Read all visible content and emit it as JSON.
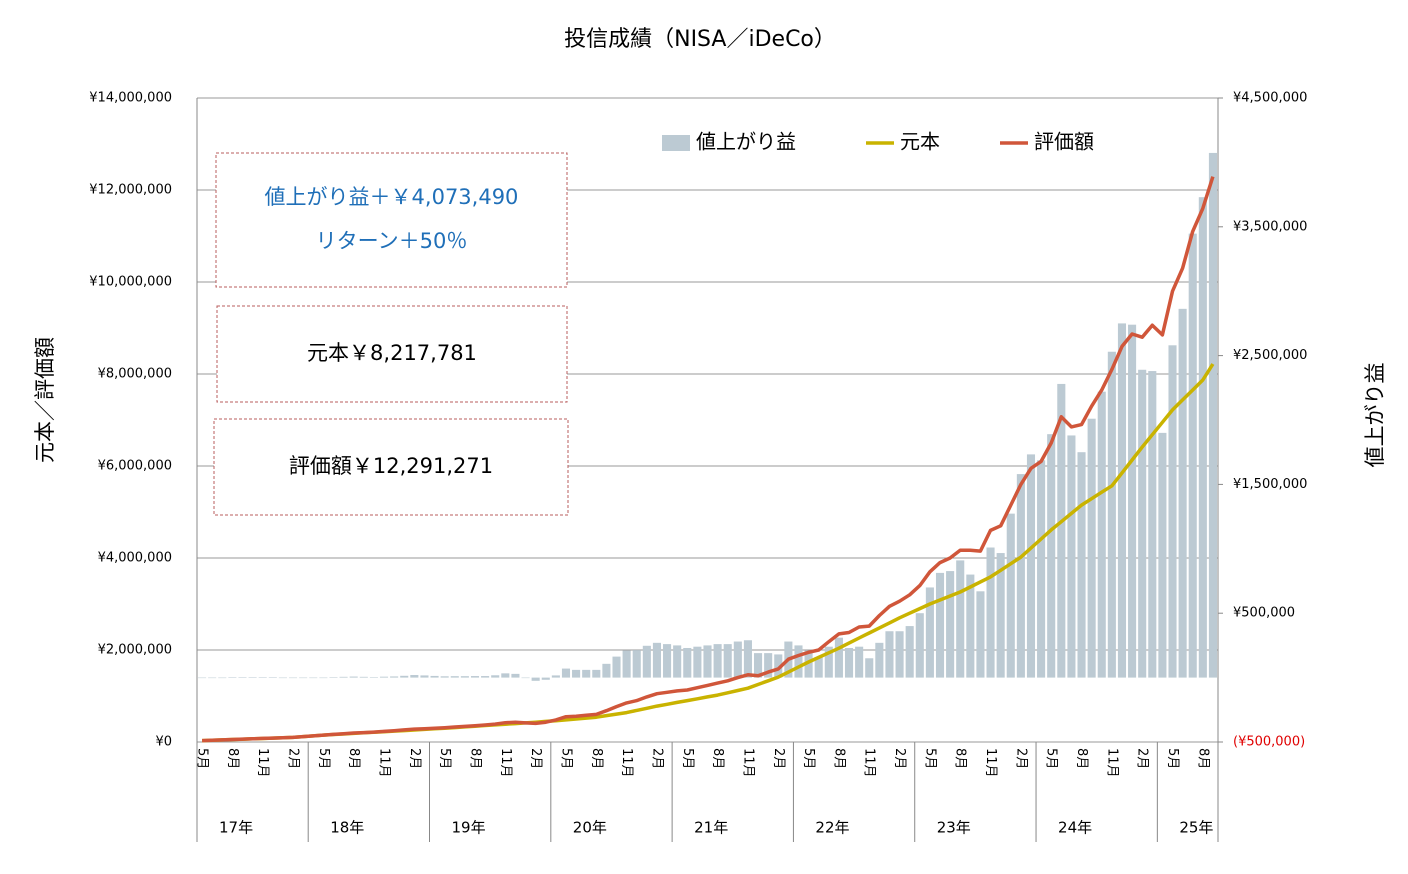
{
  "chart_data": {
    "type": "combo",
    "title": "投信成績（NISA／iDeCo）",
    "ylabel": "元本／評価額",
    "y2label": "値上がり益",
    "categories": [
      "5月",
      null,
      null,
      "8月",
      null,
      null,
      "11月",
      null,
      null,
      "2月",
      null,
      null,
      "5月",
      null,
      null,
      "8月",
      null,
      null,
      "11月",
      null,
      null,
      "2月",
      null,
      null,
      "5月",
      null,
      null,
      "8月",
      null,
      null,
      "11月",
      null,
      null,
      "2月",
      null,
      null,
      "5月",
      null,
      null,
      "8月",
      null,
      null,
      "11月",
      null,
      null,
      "2月",
      null,
      null,
      "5月",
      null,
      null,
      "8月",
      null,
      null,
      "11月",
      null,
      null,
      "2月",
      null,
      null,
      "5月",
      null,
      null,
      "8月",
      null,
      null,
      "11月",
      null,
      null,
      "2月",
      null,
      null,
      "5月",
      null,
      null,
      "8月",
      null,
      null,
      "11月",
      null,
      null,
      "2月",
      null,
      null,
      "5月",
      null,
      null,
      "8月",
      null,
      null,
      "11月",
      null,
      null,
      "2月",
      null,
      null,
      "5月",
      null,
      null,
      "8月",
      null
    ],
    "x_groups": [
      "17年",
      "18年",
      "19年",
      "20年",
      "21年",
      "22年",
      "23年",
      "24年",
      "25年"
    ],
    "series": [
      {
        "name": "値上がり益",
        "type": "bar",
        "axis": "y2",
        "color": "#bccad3",
        "values": [
          0,
          0,
          0,
          1000,
          1000,
          1000,
          1000,
          1000,
          0,
          0,
          0,
          0,
          0,
          3000,
          6000,
          8000,
          6000,
          4000,
          7000,
          9000,
          14000,
          20000,
          17000,
          13000,
          10000,
          11000,
          11000,
          12000,
          12000,
          18000,
          33000,
          29000,
          -1000,
          -25000,
          -17000,
          17000,
          70000,
          60000,
          60000,
          60000,
          107000,
          163000,
          210000,
          213000,
          247000,
          270000,
          260000,
          250000,
          230000,
          240000,
          250000,
          260000,
          260000,
          280000,
          290000,
          190000,
          190000,
          180000,
          280000,
          250000,
          210000,
          160000,
          240000,
          310000,
          230000,
          240000,
          150000,
          270000,
          360000,
          360000,
          400000,
          500000,
          700000,
          813000,
          827000,
          910000,
          800000,
          670000,
          1010000,
          967000,
          1273000,
          1580000,
          1733000,
          1687000,
          1890000,
          2280000,
          1880000,
          1750000,
          2010000,
          2220000,
          2530000,
          2750000,
          2740000,
          2390000,
          2380000,
          1900000,
          2580000,
          2863000,
          3447000,
          3730000,
          4073490
        ]
      },
      {
        "name": "元本",
        "type": "line",
        "axis": "y",
        "color": "#c9b300",
        "values": [
          30000,
          38000,
          46000,
          54000,
          61000,
          69000,
          77000,
          84000,
          92000,
          100000,
          117000,
          133000,
          150000,
          162000,
          174000,
          187000,
          199000,
          211000,
          223000,
          236000,
          248000,
          260000,
          273000,
          287000,
          300000,
          314000,
          329000,
          343000,
          358000,
          372000,
          387000,
          401000,
          416000,
          430000,
          447000,
          463000,
          480000,
          500000,
          520000,
          540000,
          573000,
          607000,
          640000,
          687000,
          733000,
          780000,
          820000,
          860000,
          900000,
          940000,
          980000,
          1020000,
          1070000,
          1120000,
          1170000,
          1250000,
          1330000,
          1410000,
          1520000,
          1630000,
          1740000,
          1840000,
          1940000,
          2040000,
          2150000,
          2260000,
          2370000,
          2480000,
          2590000,
          2700000,
          2800000,
          2900000,
          3000000,
          3087000,
          3173000,
          3260000,
          3370000,
          3480000,
          3590000,
          3733000,
          3877000,
          4020000,
          4217000,
          4413000,
          4610000,
          4790000,
          4970000,
          5150000,
          5290000,
          5430000,
          5570000,
          5850000,
          6130000,
          6410000,
          6680000,
          6950000,
          7220000,
          7437000,
          7653000,
          7870000,
          8217781
        ]
      },
      {
        "name": "評価額",
        "type": "line",
        "axis": "y",
        "color": "#d0563a",
        "values": [
          30000,
          38000,
          46000,
          55000,
          62000,
          70000,
          78000,
          85000,
          92000,
          100000,
          117000,
          133000,
          150000,
          165000,
          180000,
          195000,
          205000,
          215000,
          230000,
          245000,
          262000,
          280000,
          290000,
          300000,
          310000,
          325000,
          340000,
          355000,
          370000,
          390000,
          420000,
          430000,
          415000,
          405000,
          430000,
          480000,
          550000,
          560000,
          580000,
          600000,
          680000,
          770000,
          850000,
          900000,
          980000,
          1050000,
          1080000,
          1110000,
          1130000,
          1180000,
          1230000,
          1280000,
          1330000,
          1400000,
          1460000,
          1440000,
          1520000,
          1590000,
          1800000,
          1880000,
          1950000,
          2000000,
          2180000,
          2350000,
          2380000,
          2500000,
          2520000,
          2750000,
          2950000,
          3060000,
          3200000,
          3400000,
          3700000,
          3900000,
          4000000,
          4170000,
          4170000,
          4150000,
          4600000,
          4700000,
          5150000,
          5600000,
          5950000,
          6100000,
          6500000,
          7070000,
          6850000,
          6900000,
          7300000,
          7650000,
          8100000,
          8600000,
          8870000,
          8800000,
          9060000,
          8850000,
          9800000,
          10300000,
          11100000,
          11600000,
          12291271
        ]
      }
    ],
    "ylim": [
      0,
      14000000
    ],
    "yticks": [
      {
        "value": 0,
        "label": "¥0"
      },
      {
        "value": 2000000,
        "label": "¥2,000,000"
      },
      {
        "value": 4000000,
        "label": "¥4,000,000"
      },
      {
        "value": 6000000,
        "label": "¥6,000,000"
      },
      {
        "value": 8000000,
        "label": "¥8,000,000"
      },
      {
        "value": 10000000,
        "label": "¥10,000,000"
      },
      {
        "value": 12000000,
        "label": "¥12,000,000"
      },
      {
        "value": 14000000,
        "label": "¥14,000,000"
      }
    ],
    "y2lim": [
      -500000,
      4500000
    ],
    "y2ticks": [
      {
        "value": -500000,
        "label": "(¥500,000)"
      },
      {
        "value": 500000,
        "label": "¥500,000"
      },
      {
        "value": 1500000,
        "label": "¥1,500,000"
      },
      {
        "value": 2500000,
        "label": "¥2,500,000"
      },
      {
        "value": 3500000,
        "label": "¥3,500,000"
      },
      {
        "value": 4500000,
        "label": "¥4,500,000"
      }
    ],
    "negative_tick_color": "#e00000",
    "grid": true,
    "legend": "top",
    "annotations": [
      {
        "lines": [
          "値上がり益＋￥4,073,490",
          "リターン＋50％"
        ],
        "color": "#1f6fb8"
      },
      {
        "lines": [
          "元本￥8,217,781"
        ],
        "color": "#000000"
      },
      {
        "lines": [
          "評価額￥12,291,271"
        ],
        "color": "#000000"
      }
    ]
  }
}
